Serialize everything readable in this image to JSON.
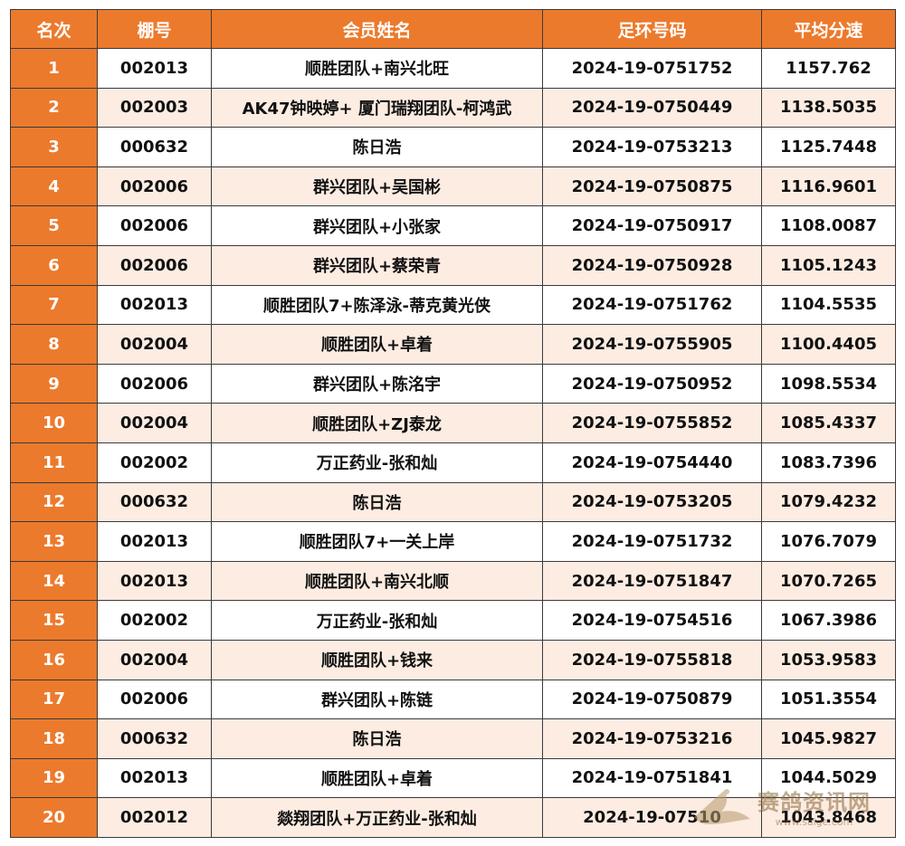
{
  "table": {
    "headers": [
      "名次",
      "棚号",
      "会员姓名",
      "足环号码",
      "平均分速"
    ],
    "rows": [
      {
        "rank": "1",
        "loft": "002013",
        "name": "顺胜团队+南兴北旺",
        "ring": "2024-19-0751752",
        "speed": "1157.762"
      },
      {
        "rank": "2",
        "loft": "002003",
        "name": "AK47钟映婷+ 厦门瑞翔团队-柯鸿武",
        "ring": "2024-19-0750449",
        "speed": "1138.5035"
      },
      {
        "rank": "3",
        "loft": "000632",
        "name": "陈日浩",
        "ring": "2024-19-0753213",
        "speed": "1125.7448"
      },
      {
        "rank": "4",
        "loft": "002006",
        "name": "群兴团队+吴国彬",
        "ring": "2024-19-0750875",
        "speed": "1116.9601"
      },
      {
        "rank": "5",
        "loft": "002006",
        "name": "群兴团队+小张家",
        "ring": "2024-19-0750917",
        "speed": "1108.0087"
      },
      {
        "rank": "6",
        "loft": "002006",
        "name": "群兴团队+蔡荣青",
        "ring": "2024-19-0750928",
        "speed": "1105.1243"
      },
      {
        "rank": "7",
        "loft": "002013",
        "name": "顺胜团队7+陈泽泳-蒂克黄光侠",
        "ring": "2024-19-0751762",
        "speed": "1104.5535"
      },
      {
        "rank": "8",
        "loft": "002004",
        "name": "顺胜团队+卓着",
        "ring": "2024-19-0755905",
        "speed": "1100.4405"
      },
      {
        "rank": "9",
        "loft": "002006",
        "name": "群兴团队+陈洺宇",
        "ring": "2024-19-0750952",
        "speed": "1098.5534"
      },
      {
        "rank": "10",
        "loft": "002004",
        "name": "顺胜团队+ZJ泰龙",
        "ring": "2024-19-0755852",
        "speed": "1085.4337"
      },
      {
        "rank": "11",
        "loft": "002002",
        "name": "万正药业-张和灿",
        "ring": "2024-19-0754440",
        "speed": "1083.7396"
      },
      {
        "rank": "12",
        "loft": "000632",
        "name": "陈日浩",
        "ring": "2024-19-0753205",
        "speed": "1079.4232"
      },
      {
        "rank": "13",
        "loft": "002013",
        "name": "顺胜团队7+一关上岸",
        "ring": "2024-19-0751732",
        "speed": "1076.7079"
      },
      {
        "rank": "14",
        "loft": "002013",
        "name": "顺胜团队+南兴北顺",
        "ring": "2024-19-0751847",
        "speed": "1070.7265"
      },
      {
        "rank": "15",
        "loft": "002002",
        "name": "万正药业-张和灿",
        "ring": "2024-19-0754516",
        "speed": "1067.3986"
      },
      {
        "rank": "16",
        "loft": "002004",
        "name": "顺胜团队+钱来",
        "ring": "2024-19-0755818",
        "speed": "1053.9583"
      },
      {
        "rank": "17",
        "loft": "002006",
        "name": "群兴团队+陈链",
        "ring": "2024-19-0750879",
        "speed": "1051.3554"
      },
      {
        "rank": "18",
        "loft": "000632",
        "name": "陈日浩",
        "ring": "2024-19-0753216",
        "speed": "1045.9827"
      },
      {
        "rank": "19",
        "loft": "002013",
        "name": "顺胜团队+卓着",
        "ring": "2024-19-0751841",
        "speed": "1044.5029"
      },
      {
        "rank": "20",
        "loft": "002012",
        "name": "燚翔团队+万正药业-张和灿",
        "ring": "2024-19-07510",
        "speed": "1043.8468"
      }
    ]
  },
  "watermark": {
    "text": "赛鸽资讯网",
    "url": "www.saige.com"
  },
  "colors": {
    "header_bg": "#ec7a2c",
    "rank_bg": "#ec7a2c",
    "stripe_bg": "#fdece2",
    "border": "#3a3a3a"
  }
}
